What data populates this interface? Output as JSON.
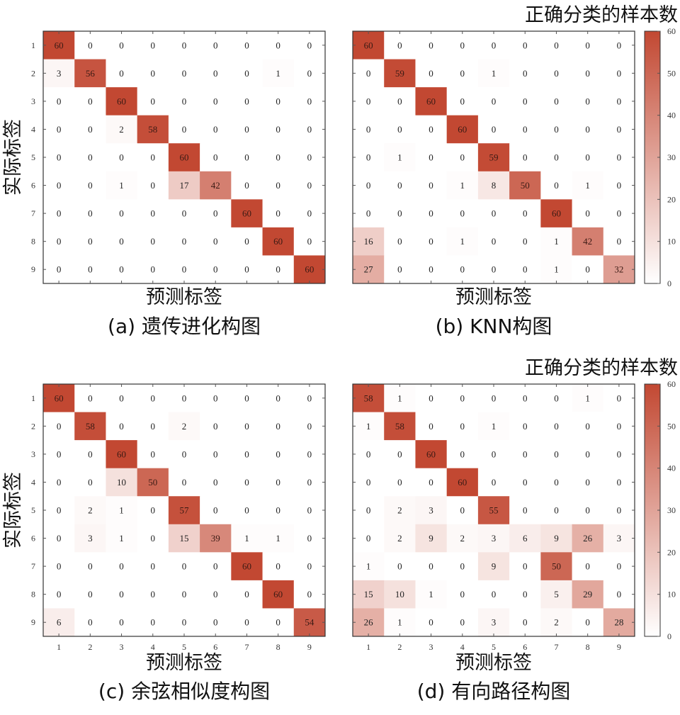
{
  "figure_type": "confusion-matrix grid",
  "colors": {
    "high": "#c24832",
    "low": "#ffffff",
    "frame": "#333333"
  },
  "colorbar_title": "正确分类的样本数",
  "chart_data": [
    {
      "type": "heatmap",
      "caption": "(a) 遗传进化构图",
      "xlabel": "预测标签",
      "ylabel": "实际标签",
      "row_ticks": [
        "1",
        "2",
        "3",
        "4",
        "5",
        "6",
        "7",
        "8",
        "9"
      ],
      "col_ticks": [],
      "vmin": 0,
      "vmax": 60,
      "values": [
        [
          60,
          0,
          0,
          0,
          0,
          0,
          0,
          0,
          0
        ],
        [
          3,
          56,
          0,
          0,
          0,
          0,
          0,
          1,
          0
        ],
        [
          0,
          0,
          60,
          0,
          0,
          0,
          0,
          0,
          0
        ],
        [
          0,
          0,
          2,
          58,
          0,
          0,
          0,
          0,
          0
        ],
        [
          0,
          0,
          0,
          0,
          60,
          0,
          0,
          0,
          0
        ],
        [
          0,
          0,
          1,
          0,
          17,
          42,
          0,
          0,
          0
        ],
        [
          0,
          0,
          0,
          0,
          0,
          0,
          60,
          0,
          0
        ],
        [
          0,
          0,
          0,
          0,
          0,
          0,
          0,
          60,
          0
        ],
        [
          0,
          0,
          0,
          0,
          0,
          0,
          0,
          0,
          60
        ]
      ]
    },
    {
      "type": "heatmap",
      "caption": "(b) KNN构图",
      "xlabel": "预测标签",
      "ylabel": "",
      "row_ticks": [],
      "col_ticks": [],
      "vmin": 0,
      "vmax": 60,
      "colorbar": {
        "ticks": [
          0,
          10,
          20,
          30,
          40,
          50,
          60
        ]
      },
      "values": [
        [
          60,
          0,
          0,
          0,
          0,
          0,
          0,
          0,
          0
        ],
        [
          0,
          59,
          0,
          0,
          1,
          0,
          0,
          0,
          0
        ],
        [
          0,
          0,
          60,
          0,
          0,
          0,
          0,
          0,
          0
        ],
        [
          0,
          0,
          0,
          60,
          0,
          0,
          0,
          0,
          0
        ],
        [
          0,
          1,
          0,
          0,
          59,
          0,
          0,
          0,
          0
        ],
        [
          0,
          0,
          0,
          1,
          8,
          50,
          0,
          1,
          0
        ],
        [
          0,
          0,
          0,
          0,
          0,
          0,
          60,
          0,
          0
        ],
        [
          16,
          0,
          0,
          1,
          0,
          0,
          1,
          42,
          0
        ],
        [
          27,
          0,
          0,
          0,
          0,
          0,
          1,
          0,
          32
        ]
      ]
    },
    {
      "type": "heatmap",
      "caption": "(c) 余弦相似度构图",
      "xlabel": "预测标签",
      "ylabel": "实际标签",
      "row_ticks": [
        "1",
        "2",
        "3",
        "4",
        "5",
        "6",
        "7",
        "8",
        "9"
      ],
      "col_ticks": [
        "1",
        "2",
        "3",
        "4",
        "5",
        "6",
        "7",
        "8",
        "9"
      ],
      "vmin": 0,
      "vmax": 60,
      "values": [
        [
          60,
          0,
          0,
          0,
          0,
          0,
          0,
          0,
          0
        ],
        [
          0,
          58,
          0,
          0,
          2,
          0,
          0,
          0,
          0
        ],
        [
          0,
          0,
          60,
          0,
          0,
          0,
          0,
          0,
          0
        ],
        [
          0,
          0,
          10,
          50,
          0,
          0,
          0,
          0,
          0
        ],
        [
          0,
          2,
          1,
          0,
          57,
          0,
          0,
          0,
          0
        ],
        [
          0,
          3,
          1,
          0,
          15,
          39,
          1,
          1,
          0
        ],
        [
          0,
          0,
          0,
          0,
          0,
          0,
          60,
          0,
          0
        ],
        [
          0,
          0,
          0,
          0,
          0,
          0,
          0,
          60,
          0
        ],
        [
          6,
          0,
          0,
          0,
          0,
          0,
          0,
          0,
          54
        ]
      ]
    },
    {
      "type": "heatmap",
      "caption": "(d) 有向路径构图",
      "xlabel": "预测标签",
      "ylabel": "",
      "row_ticks": [],
      "col_ticks": [
        "1",
        "2",
        "3",
        "4",
        "5",
        "6",
        "7",
        "8",
        "9"
      ],
      "vmin": 0,
      "vmax": 60,
      "colorbar": {
        "ticks": [
          0,
          10,
          20,
          30,
          40,
          50,
          60
        ]
      },
      "values": [
        [
          58,
          1,
          0,
          0,
          0,
          0,
          0,
          1,
          0
        ],
        [
          1,
          58,
          0,
          0,
          1,
          0,
          0,
          0,
          0
        ],
        [
          0,
          0,
          60,
          0,
          0,
          0,
          0,
          0,
          0
        ],
        [
          0,
          0,
          0,
          60,
          0,
          0,
          0,
          0,
          0
        ],
        [
          0,
          2,
          3,
          0,
          55,
          0,
          0,
          0,
          0
        ],
        [
          0,
          2,
          9,
          2,
          3,
          6,
          9,
          26,
          3
        ],
        [
          1,
          0,
          0,
          0,
          9,
          0,
          50,
          0,
          0
        ],
        [
          15,
          10,
          1,
          0,
          0,
          0,
          5,
          29,
          0
        ],
        [
          26,
          1,
          0,
          0,
          3,
          0,
          2,
          0,
          28
        ]
      ]
    }
  ]
}
